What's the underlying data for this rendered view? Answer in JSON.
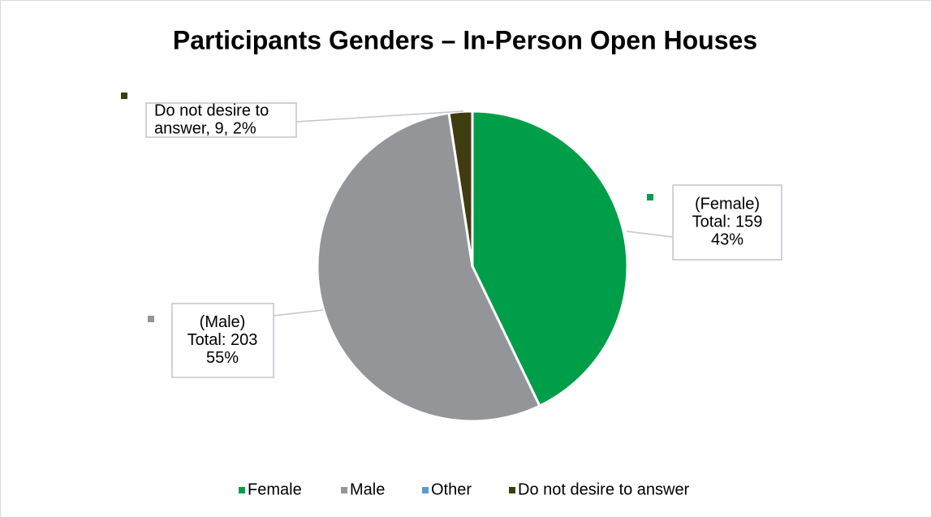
{
  "chart_data": {
    "type": "pie",
    "title": "Participants Genders – In-Person Open Houses",
    "categories": [
      "Female",
      "Male",
      "Other",
      "Do not desire to answer"
    ],
    "values": [
      159,
      203,
      0,
      9
    ],
    "value_labels": [
      [
        "(Female)",
        "Total: 159",
        "43%"
      ],
      [
        "(Male)",
        "Total: 203",
        "55%"
      ],
      null,
      [
        "Do not desire to",
        "answer, 9, 2%"
      ]
    ],
    "colors": [
      "#009e49",
      "#939598",
      "#5b9bd5",
      "#3f3d0f"
    ],
    "legend": "bottom"
  }
}
